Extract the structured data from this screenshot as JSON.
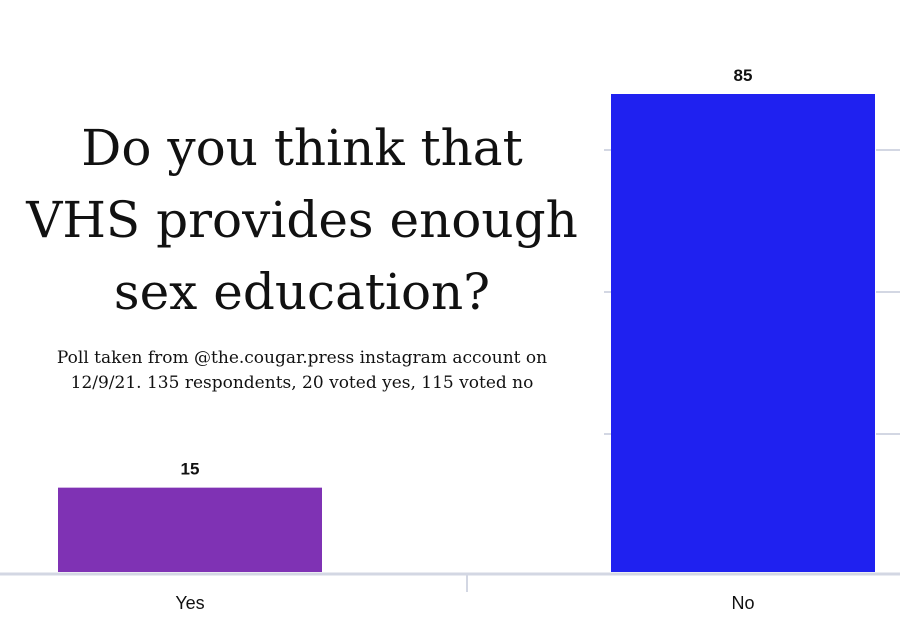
{
  "title": {
    "lines": [
      "Do you think that",
      "VHS provides enough",
      "sex education?"
    ]
  },
  "caption": {
    "lines": [
      "Poll taken from @the.cougar.press instagram account on",
      "12/9/21. 135 respondents, 20 voted yes, 115 voted no"
    ]
  },
  "colors": {
    "yes_bar": "#7f32b4",
    "no_bar": "#1f21f0",
    "axis": "#d3d7e3",
    "tick": "#d3d7e3",
    "text": "#111111"
  },
  "chart_data": {
    "type": "bar",
    "title": "Do you think that VHS provides enough sex education?",
    "categories": [
      "Yes",
      "No"
    ],
    "values": [
      15,
      85
    ],
    "data_labels": [
      "15",
      "85"
    ],
    "ylim": [
      0,
      85
    ],
    "grid": false,
    "xlabel": "",
    "ylabel": ""
  }
}
